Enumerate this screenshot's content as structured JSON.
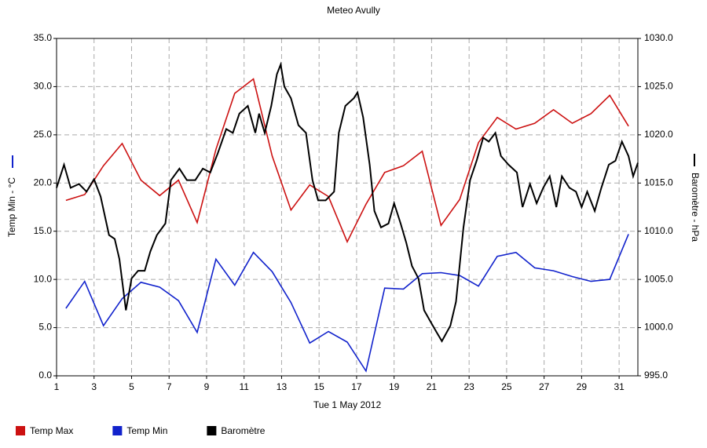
{
  "chart_data": {
    "type": "line",
    "title": "Meteo  Avully",
    "xlabel": "Tue 1 May 2012",
    "ylabel": "Temp Min - °C",
    "y2label": "Baromètre - hPa",
    "xlim": [
      1,
      32
    ],
    "xticks": [
      1,
      3,
      5,
      7,
      9,
      11,
      13,
      15,
      17,
      19,
      21,
      23,
      25,
      27,
      29,
      31
    ],
    "ylim": [
      0,
      35
    ],
    "yticks": [
      {
        "value": 0,
        "label": "0.0"
      },
      {
        "value": 5,
        "label": "5.0"
      },
      {
        "value": 10,
        "label": "10.0"
      },
      {
        "value": 15,
        "label": "15.0"
      },
      {
        "value": 20,
        "label": "20.0"
      },
      {
        "value": 25,
        "label": "25.0"
      },
      {
        "value": 30,
        "label": "30.0"
      },
      {
        "value": 35,
        "label": "35.0"
      }
    ],
    "y2lim": [
      995,
      1030
    ],
    "y2ticks": [
      {
        "value": 995,
        "label": "995.0"
      },
      {
        "value": 1000,
        "label": "1000.0"
      },
      {
        "value": 1005,
        "label": "1005.0"
      },
      {
        "value": 1010,
        "label": "1010.0"
      },
      {
        "value": 1015,
        "label": "1015.0"
      },
      {
        "value": 1020,
        "label": "1020.0"
      },
      {
        "value": 1025,
        "label": "1025.0"
      },
      {
        "value": 1030,
        "label": "1030.0"
      }
    ],
    "grid": true,
    "series": [
      {
        "name": "Temp Max",
        "color": "#cc1111",
        "x": [
          1.5,
          2.5,
          3.5,
          4.5,
          5.5,
          6.5,
          7.5,
          8.5,
          9.5,
          10.5,
          11.5,
          12.5,
          13.5,
          14.5,
          15.5,
          16.5,
          17.5,
          18.5,
          19.5,
          20.5,
          21.5,
          22.5,
          23.5,
          24.5,
          25.5,
          26.5,
          27.5,
          28.5,
          29.5,
          30.5,
          31.5
        ],
        "values": [
          18.2,
          18.8,
          21.8,
          24.1,
          20.3,
          18.7,
          20.3,
          15.9,
          23.5,
          29.3,
          30.8,
          22.8,
          17.2,
          19.8,
          18.6,
          13.9,
          17.8,
          21.1,
          21.8,
          23.3,
          15.6,
          18.3,
          24.2,
          26.8,
          25.6,
          26.2,
          27.6,
          26.2,
          27.2,
          29.1,
          25.9
        ]
      },
      {
        "name": "Temp Min",
        "color": "#1122cc",
        "x": [
          1.5,
          2.5,
          3.5,
          4.5,
          5.5,
          6.5,
          7.5,
          8.5,
          9.5,
          10.5,
          11.5,
          12.5,
          13.5,
          14.5,
          15.5,
          16.5,
          17.5,
          18.5,
          19.5,
          20.5,
          21.5,
          22.5,
          23.5,
          24.5,
          25.5,
          26.5,
          27.5,
          28.5,
          29.5,
          30.5,
          31.5
        ],
        "values": [
          7.0,
          9.8,
          5.2,
          8.0,
          9.7,
          9.2,
          7.8,
          4.5,
          12.1,
          9.4,
          12.8,
          10.8,
          7.6,
          3.4,
          4.6,
          3.5,
          0.5,
          9.1,
          9.0,
          10.6,
          10.7,
          10.4,
          9.3,
          12.4,
          12.8,
          11.2,
          10.9,
          10.3,
          9.8,
          10.0,
          14.7
        ]
      },
      {
        "name": "Baromètre",
        "color": "#000000",
        "axis": "y2",
        "x": [
          1,
          1.4,
          1.75,
          2.2,
          2.6,
          3.0,
          3.35,
          3.8,
          4.1,
          4.35,
          4.7,
          5.0,
          5.35,
          5.7,
          6.0,
          6.35,
          6.8,
          7.1,
          7.55,
          7.95,
          8.4,
          8.8,
          9.2,
          9.6,
          10.05,
          10.4,
          10.75,
          11.2,
          11.6,
          11.8,
          12.1,
          12.45,
          12.75,
          12.95,
          13.15,
          13.5,
          13.9,
          14.3,
          14.65,
          14.95,
          15.35,
          15.8,
          16.05,
          16.4,
          16.85,
          17.05,
          17.35,
          17.7,
          17.95,
          18.3,
          18.7,
          19.0,
          19.35,
          19.65,
          19.95,
          20.3,
          20.6,
          20.95,
          21.3,
          21.55,
          22.0,
          22.3,
          22.7,
          23.05,
          23.4,
          23.75,
          24.05,
          24.4,
          24.7,
          25.1,
          25.55,
          25.85,
          26.25,
          26.6,
          26.95,
          27.3,
          27.65,
          27.95,
          28.35,
          28.7,
          29.0,
          29.3,
          29.7,
          30.05,
          30.45,
          30.8,
          31.15,
          31.5,
          31.75,
          32
        ],
        "values": [
          1014.5,
          1016.9,
          1014.5,
          1014.9,
          1014.1,
          1015.4,
          1013.6,
          1009.6,
          1009.2,
          1007.1,
          1001.8,
          1005.1,
          1005.9,
          1005.9,
          1007.9,
          1009.6,
          1010.8,
          1015.3,
          1016.5,
          1015.3,
          1015.3,
          1016.5,
          1016.1,
          1018.1,
          1020.6,
          1020.2,
          1022.2,
          1023.0,
          1020.2,
          1022.2,
          1020.2,
          1023.0,
          1026.3,
          1027.3,
          1025.0,
          1023.8,
          1021.0,
          1020.2,
          1015.3,
          1013.2,
          1013.2,
          1014.1,
          1020.2,
          1023.0,
          1023.8,
          1024.4,
          1021.8,
          1016.9,
          1012.1,
          1010.4,
          1010.8,
          1012.9,
          1010.8,
          1008.8,
          1006.4,
          1005.1,
          1001.8,
          1000.6,
          999.4,
          998.6,
          1000.2,
          1002.7,
          1010.4,
          1015.3,
          1017.3,
          1019.7,
          1019.3,
          1020.2,
          1017.8,
          1016.9,
          1016.1,
          1012.5,
          1014.9,
          1012.9,
          1014.5,
          1015.7,
          1012.5,
          1015.7,
          1014.5,
          1014.1,
          1012.5,
          1014.1,
          1012.1,
          1014.5,
          1016.9,
          1017.3,
          1019.3,
          1017.8,
          1015.7,
          1017.1
        ]
      }
    ]
  }
}
